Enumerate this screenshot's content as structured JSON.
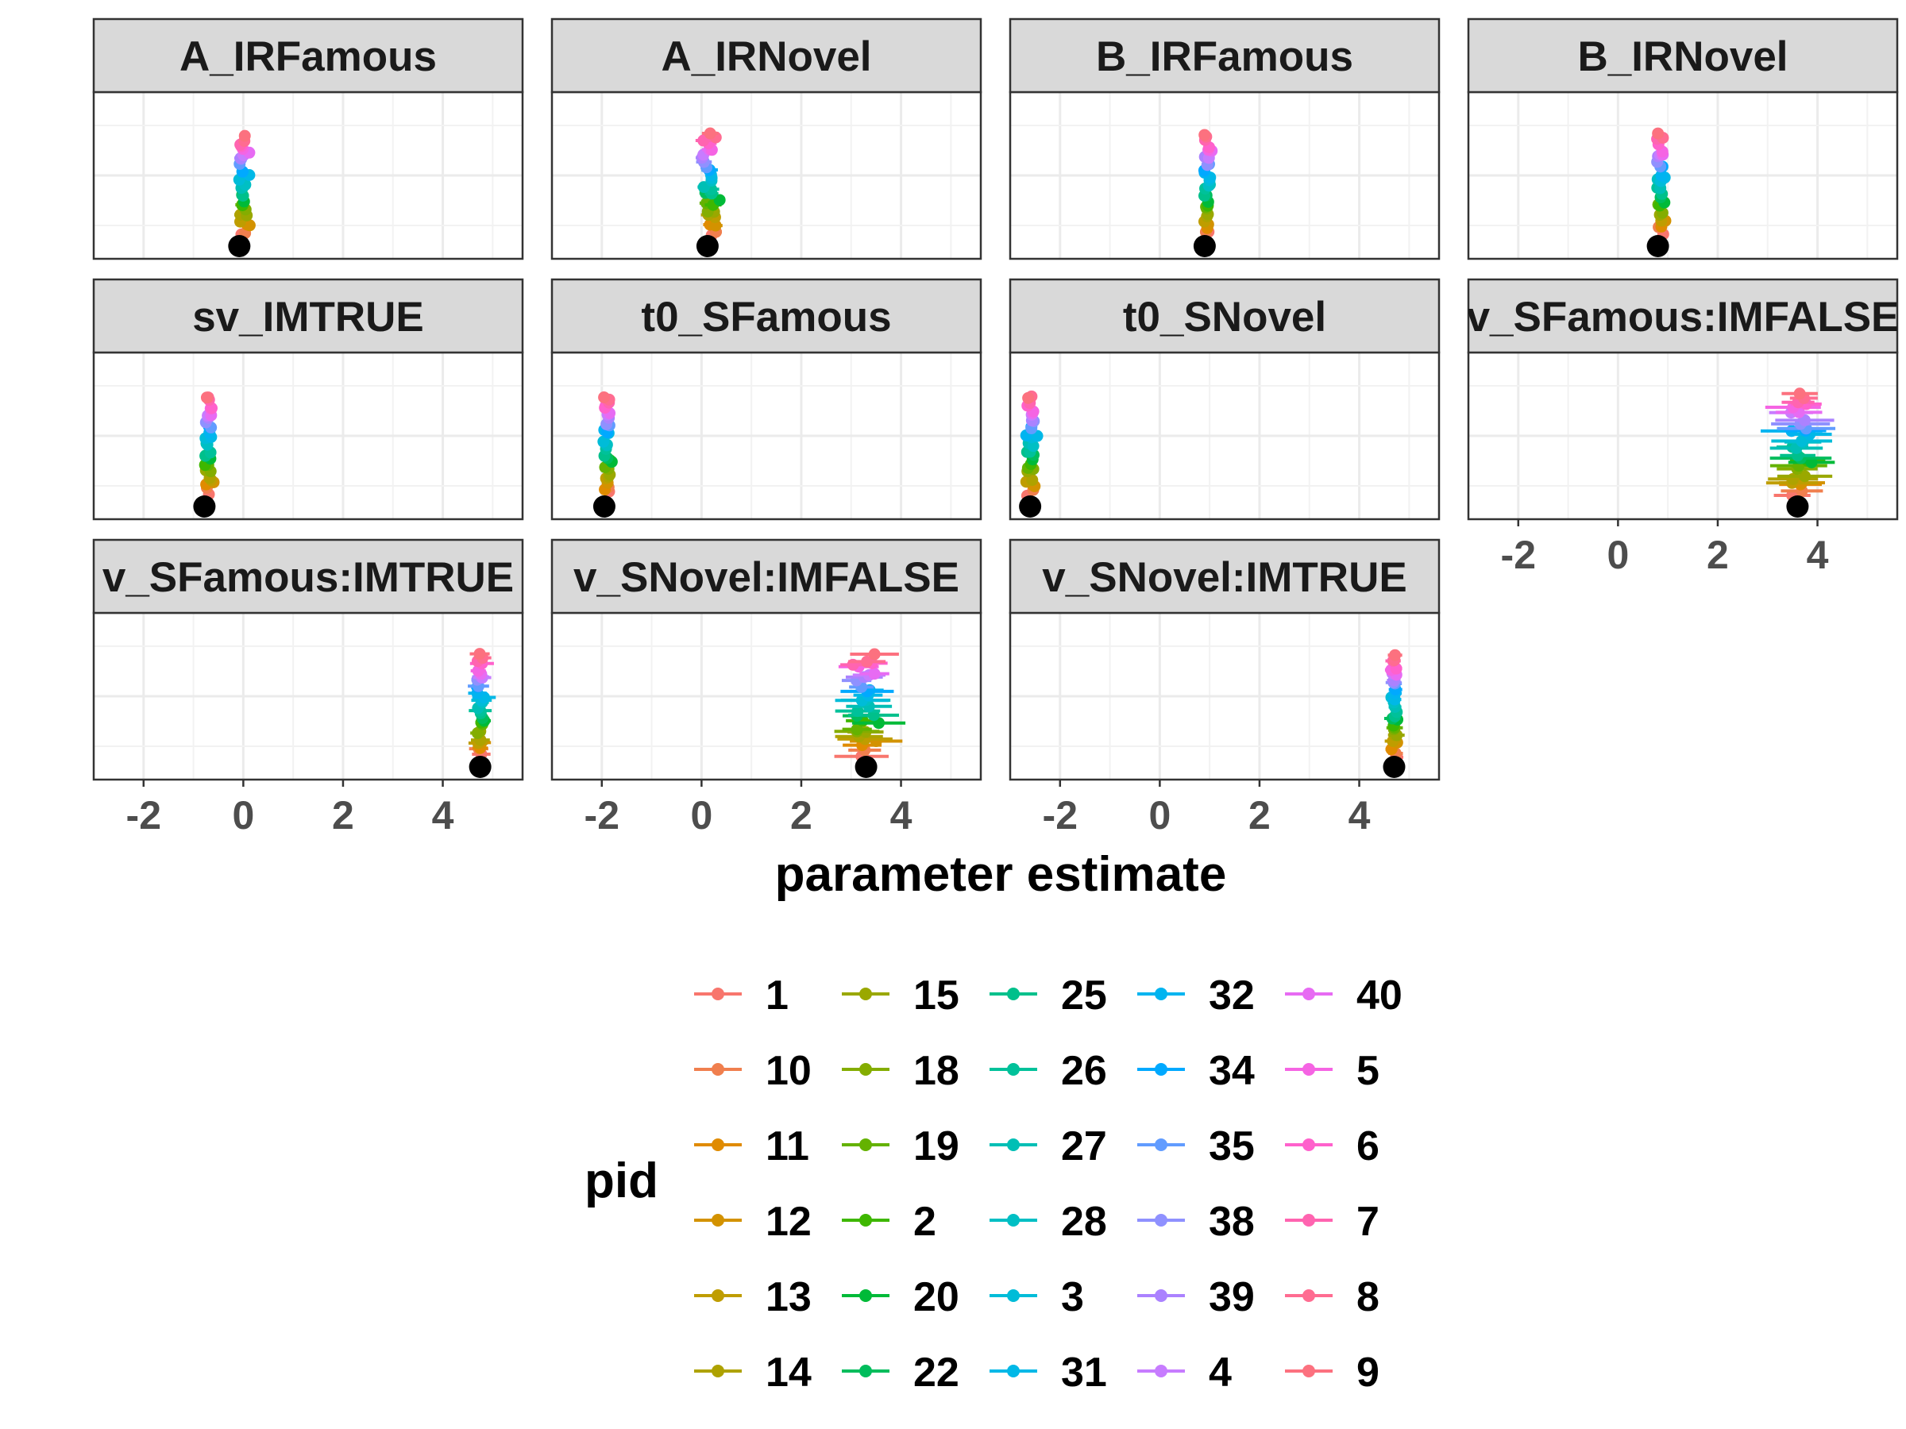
{
  "chart_data": {
    "type": "scatter",
    "xlabel": "parameter estimate",
    "xlim": [
      -3.0,
      5.6
    ],
    "xticks": [
      -2,
      0,
      2,
      4
    ],
    "xtick_labels": [
      "-2",
      "0",
      "2",
      "4"
    ],
    "legend": {
      "title": "pid",
      "position": "bottom",
      "labels": [
        "1",
        "10",
        "11",
        "12",
        "13",
        "14",
        "15",
        "18",
        "19",
        "2",
        "20",
        "22",
        "25",
        "26",
        "27",
        "28",
        "3",
        "31",
        "32",
        "34",
        "35",
        "38",
        "39",
        "4",
        "40",
        "5",
        "6",
        "7",
        "8",
        "9"
      ],
      "colors": [
        "#F8766D",
        "#F07F4E",
        "#E08B00",
        "#D39200",
        "#BF9D00",
        "#AEA200",
        "#9AA800",
        "#84AD00",
        "#64B200",
        "#3EB700",
        "#00BA38",
        "#00BD5C",
        "#00C08B",
        "#00C19A",
        "#00BFB5",
        "#00BFC4",
        "#00BCD8",
        "#00B8E7",
        "#00B4F0",
        "#00A9FF",
        "#619CFF",
        "#8F91FF",
        "#AB82FF",
        "#C77CFF",
        "#E76BF3",
        "#F564E3",
        "#FF61CC",
        "#FF64B0",
        "#FF6C91",
        "#FC717F"
      ]
    },
    "panels": [
      {
        "title": "A_IRFamous",
        "center": 0.0,
        "spread": 0.1,
        "ci": 0.1,
        "group": -0.08
      },
      {
        "title": "A_IRNovel",
        "center": 0.15,
        "spread": 0.14,
        "ci": 0.12,
        "group": 0.12
      },
      {
        "title": "B_IRFamous",
        "center": 0.95,
        "spread": 0.06,
        "ci": 0.07,
        "group": 0.9
      },
      {
        "title": "B_IRNovel",
        "center": 0.85,
        "spread": 0.07,
        "ci": 0.07,
        "group": 0.8
      },
      {
        "title": "sv_IMTRUE",
        "center": -0.7,
        "spread": 0.07,
        "ci": 0.08,
        "group": -0.78
      },
      {
        "title": "t0_SFamous",
        "center": -1.9,
        "spread": 0.07,
        "ci": 0.07,
        "group": -1.95
      },
      {
        "title": "t0_SNovel",
        "center": -2.6,
        "spread": 0.08,
        "ci": 0.07,
        "group": -2.6
      },
      {
        "title": "v_SFamous:IMFALSE",
        "center": 3.65,
        "spread": 0.18,
        "ci": 0.45,
        "group": 3.6
      },
      {
        "title": "v_SFamous:IMTRUE",
        "center": 4.75,
        "spread": 0.06,
        "ci": 0.18,
        "group": 4.75
      },
      {
        "title": "v_SNovel:IMFALSE",
        "center": 3.25,
        "spread": 0.22,
        "ci": 0.4,
        "group": 3.3
      },
      {
        "title": "v_SNovel:IMTRUE",
        "center": 4.7,
        "spread": 0.06,
        "ci": 0.12,
        "group": 4.7
      }
    ]
  }
}
